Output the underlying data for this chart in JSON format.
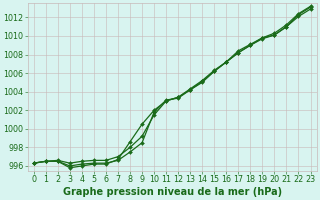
{
  "xlabel": "Graphe pression niveau de la mer (hPa)",
  "x": [
    0,
    1,
    2,
    3,
    4,
    5,
    6,
    7,
    8,
    9,
    10,
    11,
    12,
    13,
    14,
    15,
    16,
    17,
    18,
    19,
    20,
    21,
    22,
    23
  ],
  "line1": [
    996.3,
    996.5,
    996.6,
    996.3,
    996.5,
    996.6,
    996.6,
    997.0,
    998.0,
    999.2,
    1001.5,
    1003.0,
    1003.4,
    1004.2,
    1005.0,
    1006.2,
    1007.2,
    1008.2,
    1009.0,
    1009.7,
    1010.1,
    1011.0,
    1012.1,
    1012.9
  ],
  "line2": [
    996.3,
    996.5,
    996.5,
    996.0,
    996.2,
    996.3,
    996.3,
    996.6,
    997.5,
    998.5,
    1001.8,
    1003.1,
    1003.3,
    1004.2,
    1005.1,
    1006.2,
    1007.2,
    1008.2,
    1009.0,
    1009.8,
    1010.1,
    1011.0,
    1012.3,
    1013.1
  ],
  "line3": [
    996.3,
    996.5,
    996.5,
    995.8,
    996.0,
    996.2,
    996.2,
    996.7,
    998.6,
    1000.5,
    1002.0,
    1003.0,
    1003.4,
    1004.3,
    1005.2,
    1006.3,
    1007.2,
    1008.4,
    1009.1,
    1009.8,
    1010.3,
    1011.2,
    1012.4,
    1013.2
  ],
  "ylim_min": 995.5,
  "ylim_max": 1013.5,
  "yticks": [
    996,
    998,
    1000,
    1002,
    1004,
    1006,
    1008,
    1010,
    1012
  ],
  "bg_color": "#d8f4f0",
  "grid_color": "#c8b8b8",
  "line_color": "#1a6b1a",
  "marker_color": "#1a6b1a",
  "tick_label_color": "#1a6b1a",
  "xlabel_color": "#1a6b1a",
  "xlabel_fontsize": 7.0,
  "tick_fontsize": 5.8
}
